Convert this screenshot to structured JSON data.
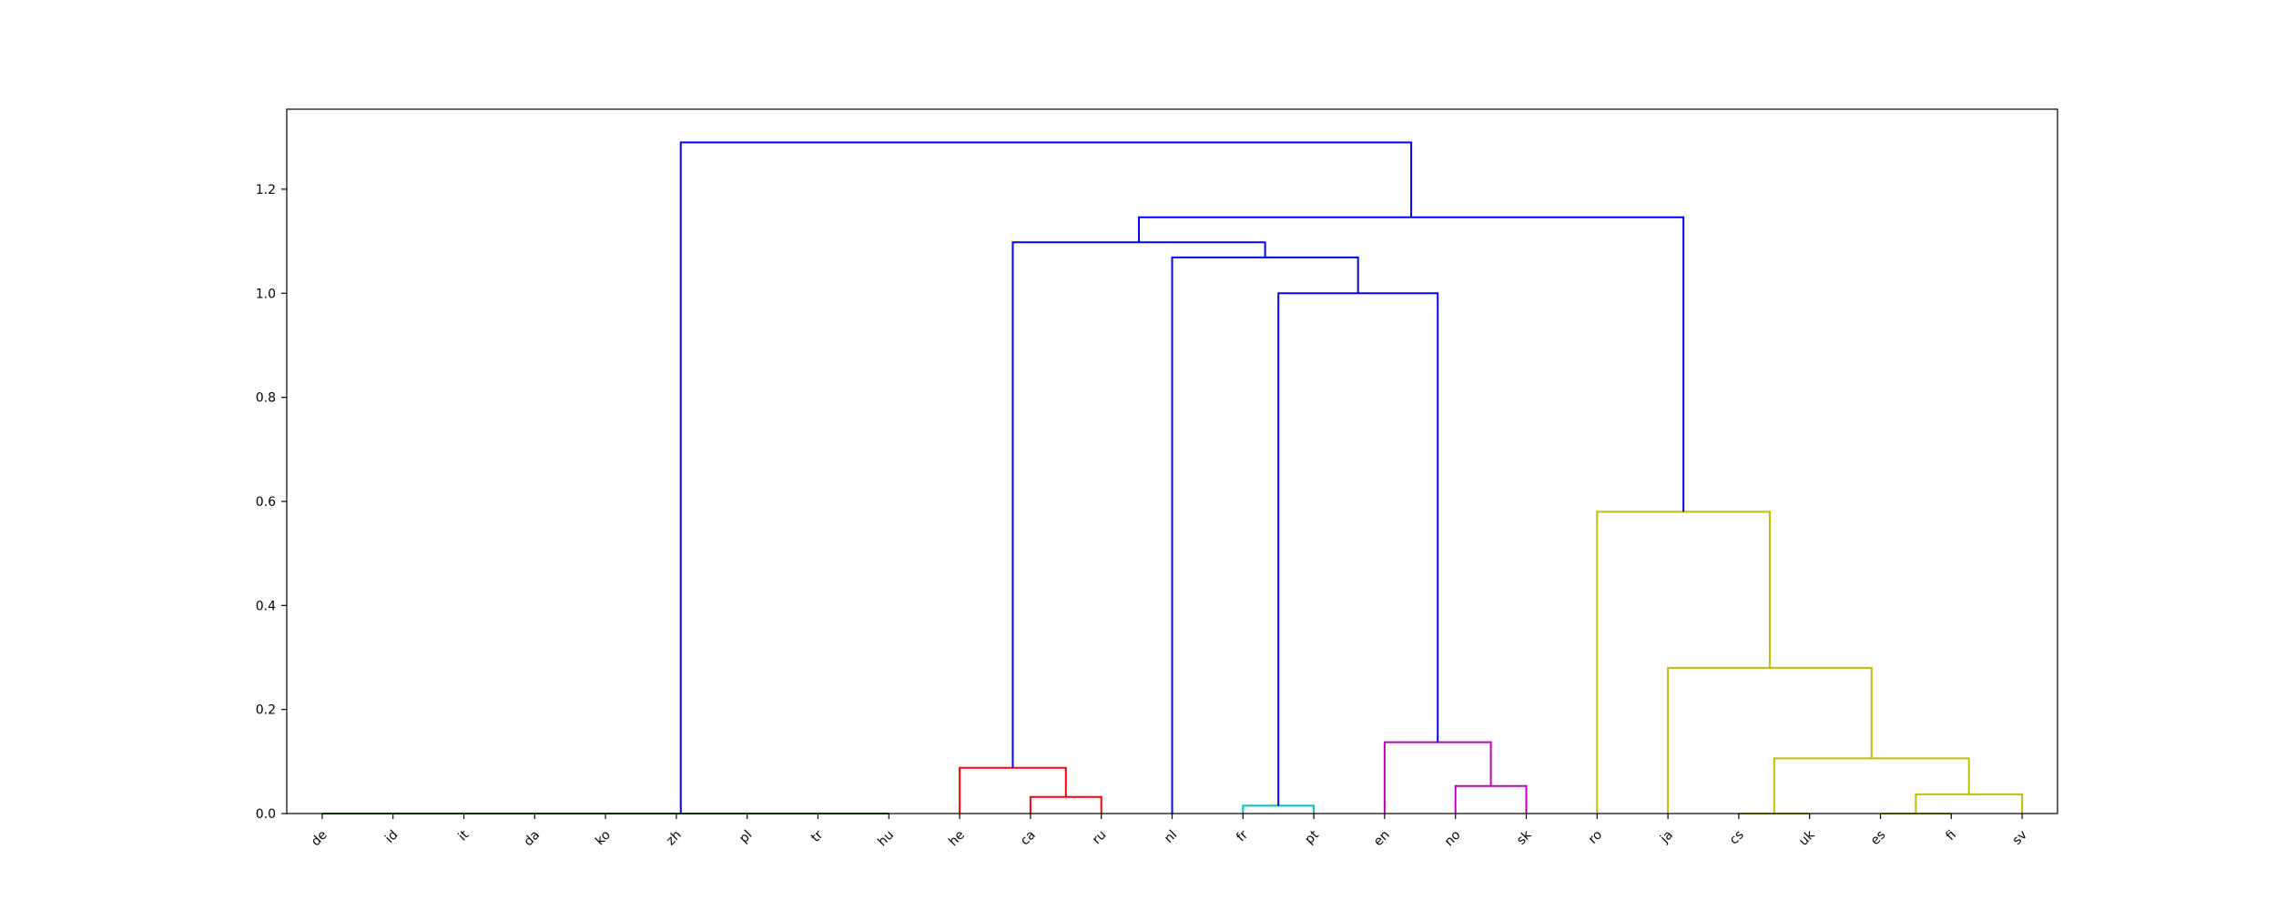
{
  "chart_data": {
    "type": "dendrogram",
    "title": "",
    "xlabel": "",
    "ylabel": "",
    "ylim": [
      0,
      1.3538
    ],
    "grid": false,
    "leaves": [
      "de",
      "id",
      "it",
      "da",
      "ko",
      "zh",
      "pl",
      "tr",
      "hu",
      "he",
      "ca",
      "ru",
      "nl",
      "fr",
      "pt",
      "en",
      "no",
      "sk",
      "ro",
      "ja",
      "cs",
      "uk",
      "es",
      "fi",
      "sv"
    ],
    "yticks": [
      {
        "value": 0.0,
        "label": "0.0"
      },
      {
        "value": 0.2,
        "label": "0.2"
      },
      {
        "value": 0.4,
        "label": "0.4"
      },
      {
        "value": 0.6,
        "label": "0.6"
      },
      {
        "value": 0.8,
        "label": "0.8"
      },
      {
        "value": 1.0,
        "label": "1.0"
      },
      {
        "value": 1.2,
        "label": "1.2"
      }
    ],
    "colors": {
      "green": "#008000",
      "red": "#ff0000",
      "cyan": "#00bfbf",
      "magenta": "#bf00bf",
      "olive": "#bfbf00",
      "blue": "#0000ff"
    },
    "links": [
      {
        "x": [
          1,
          1,
          2,
          2
        ],
        "y": [
          0,
          0,
          0,
          0
        ],
        "color": "green"
      },
      {
        "x": [
          0,
          0,
          1.5,
          1.5
        ],
        "y": [
          0,
          0,
          0,
          0
        ],
        "color": "green"
      },
      {
        "x": [
          3,
          3,
          4,
          4
        ],
        "y": [
          0,
          0,
          0,
          0
        ],
        "color": "green"
      },
      {
        "x": [
          5,
          5,
          6,
          6
        ],
        "y": [
          0,
          0,
          0,
          0
        ],
        "color": "green"
      },
      {
        "x": [
          3.5,
          3.5,
          5.5,
          5.5
        ],
        "y": [
          0,
          0,
          0,
          0
        ],
        "color": "green"
      },
      {
        "x": [
          0.75,
          0.75,
          4.5,
          4.5
        ],
        "y": [
          0,
          0,
          0,
          0
        ],
        "color": "green"
      },
      {
        "x": [
          7,
          7,
          8,
          8
        ],
        "y": [
          0,
          0,
          0,
          0
        ],
        "color": "green"
      },
      {
        "x": [
          2.625,
          2.625,
          7.5,
          7.5
        ],
        "y": [
          0,
          0,
          0,
          0
        ],
        "color": "green"
      },
      {
        "x": [
          10,
          10,
          11,
          11
        ],
        "y": [
          0,
          0.032,
          0.032,
          0
        ],
        "color": "red"
      },
      {
        "x": [
          9,
          9,
          10.5,
          10.5
        ],
        "y": [
          0,
          0.088,
          0.088,
          0.032
        ],
        "color": "red"
      },
      {
        "x": [
          13,
          13,
          14,
          14
        ],
        "y": [
          0,
          0.015,
          0.015,
          0
        ],
        "color": "cyan"
      },
      {
        "x": [
          16,
          16,
          17,
          17
        ],
        "y": [
          0,
          0.053,
          0.053,
          0
        ],
        "color": "magenta"
      },
      {
        "x": [
          15,
          15,
          16.5,
          16.5
        ],
        "y": [
          0,
          0.137,
          0.137,
          0.053
        ],
        "color": "magenta"
      },
      {
        "x": [
          13.5,
          13.5,
          15.75,
          15.75
        ],
        "y": [
          0.015,
          1.0,
          1.0,
          0.137
        ],
        "color": "blue"
      },
      {
        "x": [
          12,
          12,
          14.625,
          14.625
        ],
        "y": [
          0,
          1.069,
          1.069,
          1.0
        ],
        "color": "blue"
      },
      {
        "x": [
          9.75,
          9.75,
          13.3125,
          13.3125
        ],
        "y": [
          0.088,
          1.098,
          1.098,
          1.069
        ],
        "color": "blue"
      },
      {
        "x": [
          20,
          20,
          21,
          21
        ],
        "y": [
          0,
          0,
          0,
          0
        ],
        "color": "olive"
      },
      {
        "x": [
          22,
          22,
          23,
          23
        ],
        "y": [
          0,
          0,
          0,
          0
        ],
        "color": "olive"
      },
      {
        "x": [
          22.5,
          22.5,
          24,
          24
        ],
        "y": [
          0,
          0.037,
          0.037,
          0
        ],
        "color": "olive"
      },
      {
        "x": [
          20.5,
          20.5,
          23.25,
          23.25
        ],
        "y": [
          0,
          0.106,
          0.106,
          0.037
        ],
        "color": "olive"
      },
      {
        "x": [
          19,
          19,
          21.875,
          21.875
        ],
        "y": [
          0,
          0.28,
          0.28,
          0.106
        ],
        "color": "olive"
      },
      {
        "x": [
          18,
          18,
          20.4375,
          20.4375
        ],
        "y": [
          0,
          0.58,
          0.58,
          0.28
        ],
        "color": "olive"
      },
      {
        "x": [
          11.53125,
          11.53125,
          19.21875,
          19.21875
        ],
        "y": [
          1.098,
          1.146,
          1.146,
          0.58
        ],
        "color": "blue"
      },
      {
        "x": [
          5.0625,
          5.0625,
          15.375,
          15.375
        ],
        "y": [
          0,
          1.29,
          1.29,
          1.146
        ],
        "color": "blue"
      }
    ]
  }
}
